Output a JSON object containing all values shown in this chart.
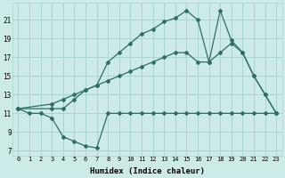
{
  "background_color": "#cceae7",
  "grid_color": "#aad4d0",
  "line_color": "#2d6e65",
  "x_label": "Humidex (Indice chaleur)",
  "x_ticks": [
    0,
    1,
    2,
    3,
    4,
    5,
    6,
    7,
    8,
    9,
    10,
    11,
    12,
    13,
    14,
    15,
    16,
    17,
    18,
    19,
    20,
    21,
    22,
    23
  ],
  "y_ticks": [
    7,
    9,
    11,
    13,
    15,
    17,
    19,
    21
  ],
  "xlim": [
    -0.5,
    23.5
  ],
  "ylim": [
    6.5,
    22.8
  ],
  "series1_x": [
    0,
    1,
    2,
    3,
    4,
    5,
    6,
    7,
    8,
    9,
    10,
    11,
    12,
    13,
    14,
    15,
    16,
    17,
    18,
    19,
    20,
    21,
    22,
    23
  ],
  "series1_y": [
    11.5,
    11.0,
    11.0,
    10.5,
    8.5,
    8.0,
    7.5,
    7.3,
    11.0,
    11.0,
    11.0,
    11.0,
    11.0,
    11.0,
    11.0,
    11.0,
    11.0,
    11.0,
    11.0,
    11.0,
    11.0,
    11.0,
    11.0,
    11.0
  ],
  "series2_x": [
    0,
    3,
    4,
    5,
    6,
    7,
    8,
    9,
    10,
    11,
    12,
    13,
    14,
    15,
    16,
    17,
    18,
    19,
    20,
    21,
    22,
    23
  ],
  "series2_y": [
    11.5,
    12.0,
    12.5,
    13.0,
    13.5,
    14.0,
    14.5,
    15.0,
    15.5,
    16.0,
    16.5,
    17.0,
    17.5,
    17.5,
    16.5,
    16.5,
    17.5,
    18.5,
    17.5,
    15.0,
    13.0,
    11.0
  ],
  "series3_x": [
    0,
    3,
    4,
    5,
    6,
    7,
    8,
    9,
    10,
    11,
    12,
    13,
    14,
    15,
    16,
    17,
    18,
    19,
    20,
    21,
    22,
    23
  ],
  "series3_y": [
    11.5,
    11.5,
    11.5,
    12.5,
    13.5,
    14.0,
    16.5,
    17.5,
    18.5,
    19.5,
    20.0,
    20.8,
    21.2,
    22.0,
    21.0,
    16.5,
    22.0,
    18.8,
    17.5,
    15.0,
    13.0,
    11.0
  ]
}
